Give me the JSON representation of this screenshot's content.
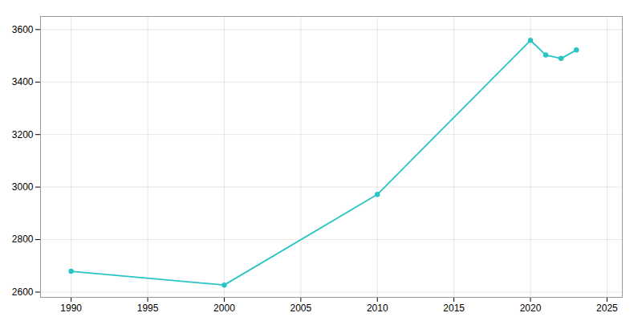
{
  "chart_data": {
    "type": "line",
    "x": [
      1990,
      2000,
      2010,
      2020,
      2021,
      2022,
      2023
    ],
    "values": [
      2679,
      2627,
      2972,
      3559,
      3503,
      3490,
      3522
    ],
    "color": "#2AC4C4",
    "marker": "circle",
    "xlim": [
      1988,
      2026
    ],
    "ylim": [
      2580,
      3650
    ],
    "xticks": [
      1990,
      1995,
      2000,
      2005,
      2010,
      2015,
      2020,
      2025
    ],
    "yticks": [
      2600,
      2800,
      3000,
      3200,
      3400,
      3600
    ],
    "grid": true
  }
}
